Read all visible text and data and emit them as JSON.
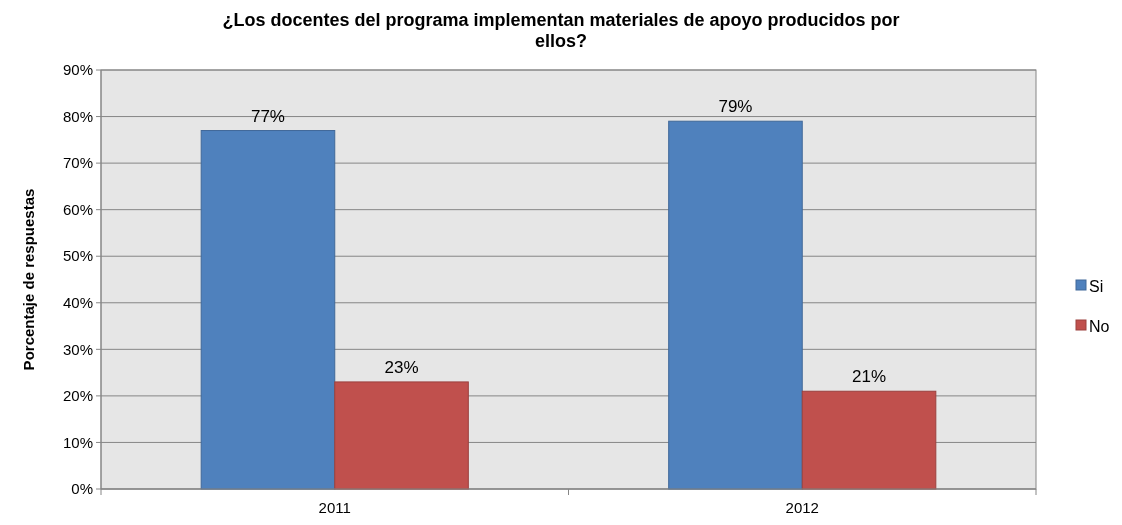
{
  "chart_data": {
    "type": "bar",
    "title": "¿Los docentes del programa implementan materiales de apoyo producidos por ellos?",
    "ylabel": "Porcentaje de respuestas",
    "categories": [
      "2011",
      "2012"
    ],
    "series": [
      {
        "name": "Si",
        "color": "#4f81bd",
        "values": [
          77,
          79
        ],
        "value_labels": [
          "77%",
          "79%"
        ]
      },
      {
        "name": "No",
        "color": "#c0504d",
        "values": [
          23,
          21
        ],
        "value_labels": [
          "23%",
          "21%"
        ]
      }
    ],
    "ylim": [
      0,
      90
    ],
    "yticks": [
      {
        "value": 0,
        "label": "0%"
      },
      {
        "value": 10,
        "label": "10%"
      },
      {
        "value": 20,
        "label": "20%"
      },
      {
        "value": 30,
        "label": "30%"
      },
      {
        "value": 40,
        "label": "40%"
      },
      {
        "value": 50,
        "label": "50%"
      },
      {
        "value": 60,
        "label": "60%"
      },
      {
        "value": 70,
        "label": "70%"
      },
      {
        "value": 80,
        "label": "80%"
      },
      {
        "value": 90,
        "label": "90%"
      }
    ],
    "grid": "y",
    "legend": "right"
  }
}
